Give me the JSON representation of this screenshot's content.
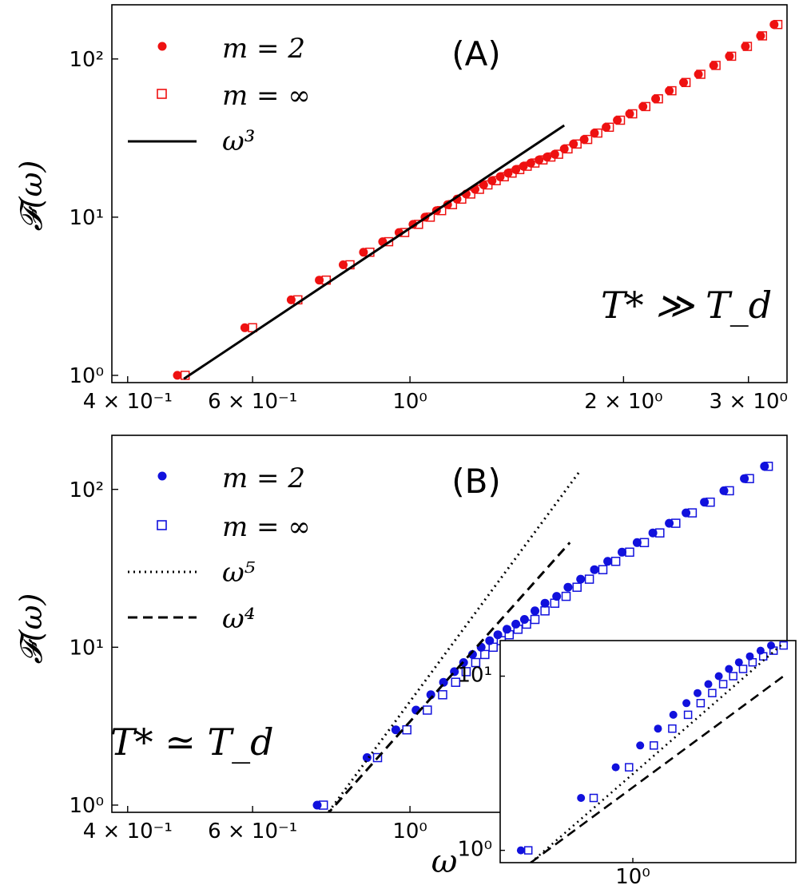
{
  "chart_data": [
    {
      "type": "scatter",
      "panel_label": "(A)",
      "annotation": "T* ≫ T_d",
      "xlabel": "",
      "ylabel": "𝓕(ω)",
      "xscale": "log",
      "yscale": "log",
      "xlim": [
        0.38,
        3.4
      ],
      "ylim": [
        0.9,
        220
      ],
      "x_ticks": [
        {
          "value": 0.4,
          "label": "4 × 10⁻¹"
        },
        {
          "value": 0.6,
          "label": "6 × 10⁻¹"
        },
        {
          "value": 1.0,
          "label": "10⁰"
        },
        {
          "value": 2.0,
          "label": "2 × 10⁰"
        },
        {
          "value": 3.0,
          "label": "3 × 10⁰"
        }
      ],
      "y_ticks": [
        {
          "value": 1,
          "label": "10⁰"
        },
        {
          "value": 10,
          "label": "10¹"
        },
        {
          "value": 100,
          "label": "10²"
        }
      ],
      "legend_placement": "top-left",
      "color": "#ee1111",
      "series": [
        {
          "name": "m = 2",
          "marker": "filled-circle",
          "x": [
            0.47,
            0.585,
            0.68,
            0.745,
            0.805,
            0.86,
            0.915,
            0.965,
            1.01,
            1.05,
            1.09,
            1.13,
            1.165,
            1.2,
            1.235,
            1.27,
            1.305,
            1.34,
            1.375,
            1.41,
            1.445,
            1.48,
            1.52,
            1.56,
            1.6,
            1.65,
            1.7,
            1.76,
            1.82,
            1.89,
            1.96,
            2.04,
            2.13,
            2.22,
            2.32,
            2.43,
            2.55,
            2.68,
            2.82,
            2.97,
            3.12,
            3.26
          ],
          "y": [
            1,
            2,
            3,
            4,
            5,
            6,
            7,
            8,
            9,
            10,
            11,
            12,
            13,
            14,
            15,
            16,
            17,
            18,
            19,
            20,
            21,
            22,
            23,
            24,
            25,
            27,
            29,
            31,
            34,
            37,
            41,
            45,
            50,
            56,
            63,
            71,
            80,
            91,
            104,
            120,
            140,
            165
          ]
        },
        {
          "name": "m = ∞",
          "marker": "open-square",
          "x": [
            0.482,
            0.6,
            0.695,
            0.762,
            0.823,
            0.878,
            0.933,
            0.983,
            1.028,
            1.068,
            1.108,
            1.148,
            1.183,
            1.218,
            1.253,
            1.288,
            1.323,
            1.358,
            1.393,
            1.428,
            1.463,
            1.5,
            1.54,
            1.58,
            1.62,
            1.67,
            1.72,
            1.78,
            1.84,
            1.91,
            1.98,
            2.06,
            2.15,
            2.24,
            2.34,
            2.45,
            2.57,
            2.7,
            2.84,
            2.99,
            3.14,
            3.3
          ],
          "y": [
            1,
            2,
            3,
            4,
            5,
            6,
            7,
            8,
            9,
            10,
            11,
            12,
            13,
            14,
            15,
            16,
            17,
            18,
            19,
            20,
            21,
            22,
            23,
            24,
            25,
            27,
            29,
            31,
            34,
            37,
            41,
            45,
            50,
            56,
            63,
            71,
            80,
            91,
            104,
            120,
            140,
            165
          ]
        },
        {
          "name": "ω³",
          "type": "line",
          "style": "solid",
          "color": "#000000",
          "x": [
            0.48,
            1.65
          ],
          "y": [
            0.95,
            38
          ]
        }
      ]
    },
    {
      "type": "scatter",
      "panel_label": "(B)",
      "annotation": "T* ≃ T_d",
      "xlabel": "ω",
      "ylabel": "𝓕(ω)",
      "xscale": "log",
      "yscale": "log",
      "xlim": [
        0.38,
        3.4
      ],
      "ylim": [
        0.9,
        220
      ],
      "x_ticks": [
        {
          "value": 0.4,
          "label": "4 × 10⁻¹"
        },
        {
          "value": 0.6,
          "label": "6 × 10⁻¹"
        },
        {
          "value": 1.0,
          "label": "10⁰"
        }
      ],
      "y_ticks": [
        {
          "value": 1,
          "label": "10⁰"
        },
        {
          "value": 10,
          "label": "10¹"
        },
        {
          "value": 100,
          "label": "10²"
        }
      ],
      "legend_placement": "top-left",
      "color": "#1111dd",
      "series": [
        {
          "name": "m = 2",
          "marker": "filled-circle",
          "x": [
            0.74,
            0.87,
            0.955,
            1.02,
            1.07,
            1.115,
            1.155,
            1.19,
            1.225,
            1.26,
            1.295,
            1.33,
            1.37,
            1.41,
            1.45,
            1.5,
            1.55,
            1.61,
            1.67,
            1.74,
            1.82,
            1.9,
            1.99,
            2.09,
            2.2,
            2.32,
            2.45,
            2.6,
            2.77,
            2.96,
            3.16
          ],
          "y": [
            1,
            2,
            3,
            4,
            5,
            6,
            7,
            8,
            9,
            10,
            11,
            12,
            13,
            14,
            15,
            17,
            19,
            21,
            24,
            27,
            31,
            35,
            40,
            46,
            53,
            61,
            71,
            83,
            98,
            117,
            140
          ]
        },
        {
          "name": "m = ∞",
          "marker": "open-square",
          "x": [
            0.755,
            0.9,
            0.99,
            1.058,
            1.112,
            1.16,
            1.2,
            1.238,
            1.275,
            1.31,
            1.345,
            1.38,
            1.42,
            1.46,
            1.5,
            1.55,
            1.6,
            1.66,
            1.72,
            1.79,
            1.87,
            1.95,
            2.04,
            2.14,
            2.25,
            2.37,
            2.5,
            2.65,
            2.82,
            3.01,
            3.2
          ],
          "y": [
            1,
            2,
            3,
            4,
            5,
            6,
            7,
            8,
            9,
            10,
            11,
            12,
            13,
            14,
            15,
            17,
            19,
            21,
            24,
            27,
            31,
            35,
            40,
            46,
            53,
            61,
            71,
            83,
            98,
            117,
            140
          ]
        },
        {
          "name": "ω⁵",
          "type": "line",
          "style": "dotted",
          "color": "#000000",
          "x": [
            0.76,
            1.73
          ],
          "y": [
            0.85,
            128
          ]
        },
        {
          "name": "ω⁴",
          "type": "line",
          "style": "dashed",
          "color": "#000000",
          "x": [
            0.76,
            1.68
          ],
          "y": [
            0.85,
            46
          ]
        }
      ],
      "inset": {
        "xscale": "log",
        "yscale": "log",
        "xlim": [
          0.7,
          1.55
        ],
        "ylim": [
          0.85,
          16
        ],
        "x_ticks": [
          {
            "value": 1.0,
            "label": "10⁰"
          }
        ],
        "y_ticks": [
          {
            "value": 1,
            "label": "10⁰"
          },
          {
            "value": 10,
            "label": "10¹"
          }
        ],
        "series": [
          {
            "name": "m = 2",
            "marker": "filled-circle",
            "x": [
              0.74,
              0.87,
              0.955,
              1.02,
              1.07,
              1.115,
              1.155,
              1.19,
              1.225,
              1.26,
              1.295,
              1.33,
              1.37,
              1.41,
              1.45
            ],
            "y": [
              1,
              2,
              3,
              4,
              5,
              6,
              7,
              8,
              9,
              10,
              11,
              12,
              13,
              14,
              15
            ]
          },
          {
            "name": "m = ∞",
            "marker": "open-square",
            "x": [
              0.755,
              0.9,
              0.99,
              1.058,
              1.112,
              1.16,
              1.2,
              1.238,
              1.275,
              1.31,
              1.345,
              1.38,
              1.42,
              1.46,
              1.5
            ],
            "y": [
              1,
              2,
              3,
              4,
              5,
              6,
              7,
              8,
              9,
              10,
              11,
              12,
              13,
              14,
              15
            ]
          },
          {
            "name": "ω⁵",
            "type": "line",
            "style": "dotted",
            "x": [
              0.76,
              1.5
            ],
            "y": [
              0.85,
              15.5
            ]
          },
          {
            "name": "ω⁴",
            "type": "line",
            "style": "dashed",
            "x": [
              0.76,
              1.5
            ],
            "y": [
              0.85,
              10
            ]
          }
        ]
      }
    }
  ]
}
